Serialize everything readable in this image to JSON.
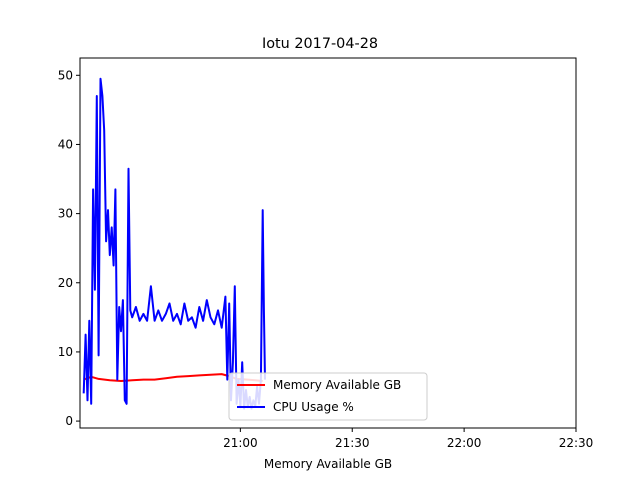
{
  "chart_data": {
    "type": "line",
    "title": "Iotu 2017-04-28",
    "xlabel": "Memory Available GB",
    "ylabel": "",
    "xlim": [
      "20:17",
      "22:30"
    ],
    "ylim": [
      -1,
      52.5
    ],
    "x_ticks": [
      "21:00",
      "21:30",
      "22:00",
      "22:30"
    ],
    "y_ticks": [
      0,
      10,
      20,
      30,
      40,
      50
    ],
    "grid": false,
    "legend_position": "lower-left-center",
    "series": [
      {
        "name": "Memory Available GB",
        "color": "#ff0000",
        "points": [
          [
            "20:18",
            6.0
          ],
          [
            "20:20",
            6.4
          ],
          [
            "20:22",
            6.1
          ],
          [
            "20:25",
            5.9
          ],
          [
            "20:28",
            5.8
          ],
          [
            "20:31",
            5.9
          ],
          [
            "20:34",
            6.0
          ],
          [
            "20:37",
            6.0
          ],
          [
            "20:40",
            6.2
          ],
          [
            "20:43",
            6.4
          ],
          [
            "20:46",
            6.5
          ],
          [
            "20:49",
            6.6
          ],
          [
            "20:52",
            6.7
          ],
          [
            "20:55",
            6.8
          ],
          [
            "20:57",
            6.5
          ],
          [
            "20:59",
            6.1
          ],
          [
            "21:02",
            6.0
          ],
          [
            "21:04",
            5.9
          ],
          [
            "21:06",
            5.8
          ]
        ]
      },
      {
        "name": "CPU Usage %",
        "color": "#0000ff",
        "points": [
          [
            "20:18",
            4
          ],
          [
            "20:18.5",
            12.5
          ],
          [
            "20:19",
            3
          ],
          [
            "20:19.5",
            14.5
          ],
          [
            "20:20",
            2.5
          ],
          [
            "20:20.5",
            33.5
          ],
          [
            "20:21",
            19
          ],
          [
            "20:21.5",
            47
          ],
          [
            "20:22",
            9.5
          ],
          [
            "20:22.5",
            49.5
          ],
          [
            "20:23",
            47
          ],
          [
            "20:23.5",
            42
          ],
          [
            "20:24",
            26
          ],
          [
            "20:24.5",
            30.5
          ],
          [
            "20:25",
            24
          ],
          [
            "20:25.5",
            28
          ],
          [
            "20:26",
            22.5
          ],
          [
            "20:26.5",
            33.5
          ],
          [
            "20:27",
            6
          ],
          [
            "20:27.5",
            16.5
          ],
          [
            "20:28",
            13
          ],
          [
            "20:28.5",
            17.5
          ],
          [
            "20:29",
            3
          ],
          [
            "20:29.5",
            2.5
          ],
          [
            "20:30",
            36.5
          ],
          [
            "20:30.5",
            16
          ],
          [
            "20:31",
            15
          ],
          [
            "20:32",
            16.5
          ],
          [
            "20:33",
            14.5
          ],
          [
            "20:34",
            15.5
          ],
          [
            "20:35",
            14.5
          ],
          [
            "20:36",
            19.5
          ],
          [
            "20:37",
            14.5
          ],
          [
            "20:38",
            16
          ],
          [
            "20:39",
            14.5
          ],
          [
            "20:40",
            15.5
          ],
          [
            "20:41",
            17
          ],
          [
            "20:42",
            14.5
          ],
          [
            "20:43",
            15.5
          ],
          [
            "20:44",
            14
          ],
          [
            "20:45",
            17
          ],
          [
            "20:46",
            14.5
          ],
          [
            "20:47",
            15
          ],
          [
            "20:48",
            13.5
          ],
          [
            "20:49",
            16.5
          ],
          [
            "20:50",
            14.5
          ],
          [
            "20:51",
            17.5
          ],
          [
            "20:52",
            15
          ],
          [
            "20:53",
            14
          ],
          [
            "20:54",
            16
          ],
          [
            "20:55",
            13.5
          ],
          [
            "20:56",
            18
          ],
          [
            "20:56.5",
            6
          ],
          [
            "20:57",
            17
          ],
          [
            "20:57.5",
            3
          ],
          [
            "20:58",
            8.5
          ],
          [
            "20:58.5",
            19.5
          ],
          [
            "20:59",
            2.5
          ],
          [
            "20:59.5",
            6
          ],
          [
            "21:00",
            2
          ],
          [
            "21:00.5",
            8.5
          ],
          [
            "21:01",
            1.8
          ],
          [
            "21:01.5",
            4.5
          ],
          [
            "21:02",
            2
          ],
          [
            "21:02.5",
            3.5
          ],
          [
            "21:03",
            1.8
          ],
          [
            "21:03.5",
            3
          ],
          [
            "21:04",
            2.2
          ],
          [
            "21:04.5",
            5
          ],
          [
            "21:05",
            2.5
          ],
          [
            "21:05.5",
            6
          ],
          [
            "21:06",
            30.5
          ],
          [
            "21:06.3",
            16
          ],
          [
            "21:06.6",
            6
          ]
        ]
      }
    ]
  }
}
